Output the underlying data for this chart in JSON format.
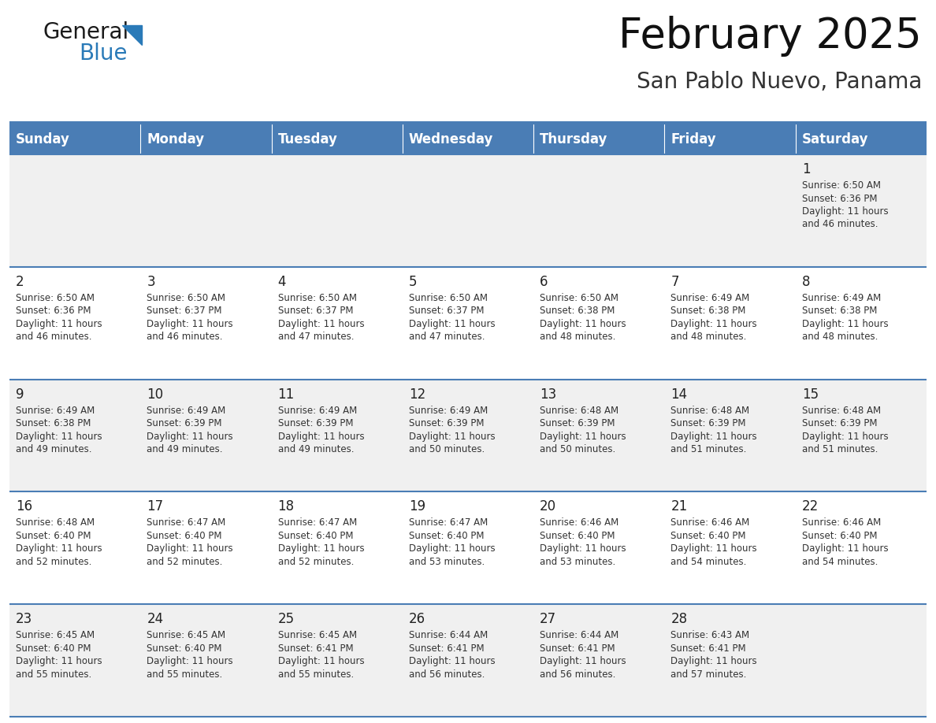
{
  "title": "February 2025",
  "subtitle": "San Pablo Nuevo, Panama",
  "days_of_week": [
    "Sunday",
    "Monday",
    "Tuesday",
    "Wednesday",
    "Thursday",
    "Friday",
    "Saturday"
  ],
  "header_bg": "#4A7DB5",
  "header_text": "#ffffff",
  "row_bg_light": "#f0f0f0",
  "row_bg_white": "#ffffff",
  "line_color": "#4A7DB5",
  "day_num_color": "#222222",
  "info_color": "#333333",
  "title_color": "#111111",
  "subtitle_color": "#333333",
  "logo_general_color": "#1a1a1a",
  "logo_blue_color": "#2a7ab8",
  "calendar_data": [
    {
      "day": 1,
      "col": 6,
      "row": 0,
      "sunrise": "6:50 AM",
      "sunset": "6:36 PM",
      "daylight_p1": "11 hours",
      "daylight_p2": "and 46 minutes."
    },
    {
      "day": 2,
      "col": 0,
      "row": 1,
      "sunrise": "6:50 AM",
      "sunset": "6:36 PM",
      "daylight_p1": "11 hours",
      "daylight_p2": "and 46 minutes."
    },
    {
      "day": 3,
      "col": 1,
      "row": 1,
      "sunrise": "6:50 AM",
      "sunset": "6:37 PM",
      "daylight_p1": "11 hours",
      "daylight_p2": "and 46 minutes."
    },
    {
      "day": 4,
      "col": 2,
      "row": 1,
      "sunrise": "6:50 AM",
      "sunset": "6:37 PM",
      "daylight_p1": "11 hours",
      "daylight_p2": "and 47 minutes."
    },
    {
      "day": 5,
      "col": 3,
      "row": 1,
      "sunrise": "6:50 AM",
      "sunset": "6:37 PM",
      "daylight_p1": "11 hours",
      "daylight_p2": "and 47 minutes."
    },
    {
      "day": 6,
      "col": 4,
      "row": 1,
      "sunrise": "6:50 AM",
      "sunset": "6:38 PM",
      "daylight_p1": "11 hours",
      "daylight_p2": "and 48 minutes."
    },
    {
      "day": 7,
      "col": 5,
      "row": 1,
      "sunrise": "6:49 AM",
      "sunset": "6:38 PM",
      "daylight_p1": "11 hours",
      "daylight_p2": "and 48 minutes."
    },
    {
      "day": 8,
      "col": 6,
      "row": 1,
      "sunrise": "6:49 AM",
      "sunset": "6:38 PM",
      "daylight_p1": "11 hours",
      "daylight_p2": "and 48 minutes."
    },
    {
      "day": 9,
      "col": 0,
      "row": 2,
      "sunrise": "6:49 AM",
      "sunset": "6:38 PM",
      "daylight_p1": "11 hours",
      "daylight_p2": "and 49 minutes."
    },
    {
      "day": 10,
      "col": 1,
      "row": 2,
      "sunrise": "6:49 AM",
      "sunset": "6:39 PM",
      "daylight_p1": "11 hours",
      "daylight_p2": "and 49 minutes."
    },
    {
      "day": 11,
      "col": 2,
      "row": 2,
      "sunrise": "6:49 AM",
      "sunset": "6:39 PM",
      "daylight_p1": "11 hours",
      "daylight_p2": "and 49 minutes."
    },
    {
      "day": 12,
      "col": 3,
      "row": 2,
      "sunrise": "6:49 AM",
      "sunset": "6:39 PM",
      "daylight_p1": "11 hours",
      "daylight_p2": "and 50 minutes."
    },
    {
      "day": 13,
      "col": 4,
      "row": 2,
      "sunrise": "6:48 AM",
      "sunset": "6:39 PM",
      "daylight_p1": "11 hours",
      "daylight_p2": "and 50 minutes."
    },
    {
      "day": 14,
      "col": 5,
      "row": 2,
      "sunrise": "6:48 AM",
      "sunset": "6:39 PM",
      "daylight_p1": "11 hours",
      "daylight_p2": "and 51 minutes."
    },
    {
      "day": 15,
      "col": 6,
      "row": 2,
      "sunrise": "6:48 AM",
      "sunset": "6:39 PM",
      "daylight_p1": "11 hours",
      "daylight_p2": "and 51 minutes."
    },
    {
      "day": 16,
      "col": 0,
      "row": 3,
      "sunrise": "6:48 AM",
      "sunset": "6:40 PM",
      "daylight_p1": "11 hours",
      "daylight_p2": "and 52 minutes."
    },
    {
      "day": 17,
      "col": 1,
      "row": 3,
      "sunrise": "6:47 AM",
      "sunset": "6:40 PM",
      "daylight_p1": "11 hours",
      "daylight_p2": "and 52 minutes."
    },
    {
      "day": 18,
      "col": 2,
      "row": 3,
      "sunrise": "6:47 AM",
      "sunset": "6:40 PM",
      "daylight_p1": "11 hours",
      "daylight_p2": "and 52 minutes."
    },
    {
      "day": 19,
      "col": 3,
      "row": 3,
      "sunrise": "6:47 AM",
      "sunset": "6:40 PM",
      "daylight_p1": "11 hours",
      "daylight_p2": "and 53 minutes."
    },
    {
      "day": 20,
      "col": 4,
      "row": 3,
      "sunrise": "6:46 AM",
      "sunset": "6:40 PM",
      "daylight_p1": "11 hours",
      "daylight_p2": "and 53 minutes."
    },
    {
      "day": 21,
      "col": 5,
      "row": 3,
      "sunrise": "6:46 AM",
      "sunset": "6:40 PM",
      "daylight_p1": "11 hours",
      "daylight_p2": "and 54 minutes."
    },
    {
      "day": 22,
      "col": 6,
      "row": 3,
      "sunrise": "6:46 AM",
      "sunset": "6:40 PM",
      "daylight_p1": "11 hours",
      "daylight_p2": "and 54 minutes."
    },
    {
      "day": 23,
      "col": 0,
      "row": 4,
      "sunrise": "6:45 AM",
      "sunset": "6:40 PM",
      "daylight_p1": "11 hours",
      "daylight_p2": "and 55 minutes."
    },
    {
      "day": 24,
      "col": 1,
      "row": 4,
      "sunrise": "6:45 AM",
      "sunset": "6:40 PM",
      "daylight_p1": "11 hours",
      "daylight_p2": "and 55 minutes."
    },
    {
      "day": 25,
      "col": 2,
      "row": 4,
      "sunrise": "6:45 AM",
      "sunset": "6:41 PM",
      "daylight_p1": "11 hours",
      "daylight_p2": "and 55 minutes."
    },
    {
      "day": 26,
      "col": 3,
      "row": 4,
      "sunrise": "6:44 AM",
      "sunset": "6:41 PM",
      "daylight_p1": "11 hours",
      "daylight_p2": "and 56 minutes."
    },
    {
      "day": 27,
      "col": 4,
      "row": 4,
      "sunrise": "6:44 AM",
      "sunset": "6:41 PM",
      "daylight_p1": "11 hours",
      "daylight_p2": "and 56 minutes."
    },
    {
      "day": 28,
      "col": 5,
      "row": 4,
      "sunrise": "6:43 AM",
      "sunset": "6:41 PM",
      "daylight_p1": "11 hours",
      "daylight_p2": "and 57 minutes."
    }
  ]
}
